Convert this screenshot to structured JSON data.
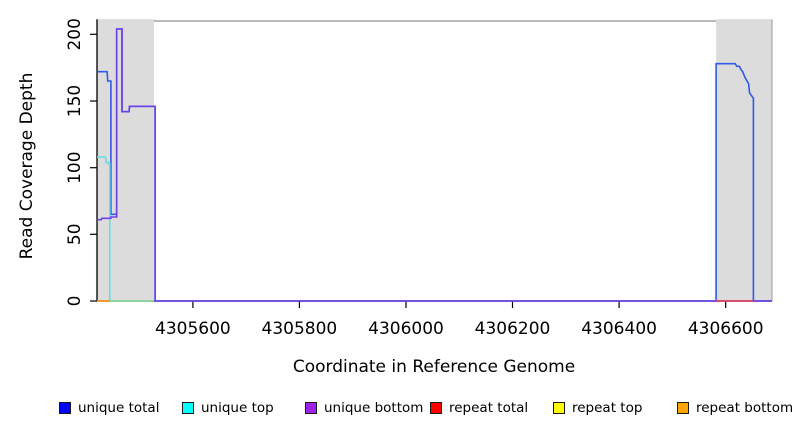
{
  "figure": {
    "y_axis_label": "Read Coverage Depth",
    "x_axis_label": "Coordinate in Reference Genome"
  },
  "legend": {
    "items": [
      {
        "label": "unique total",
        "color": "#0000ff"
      },
      {
        "label": "unique top",
        "color": "#00ffff"
      },
      {
        "label": "unique bottom",
        "color": "#a020f0"
      },
      {
        "label": "repeat total",
        "color": "#ff0000"
      },
      {
        "label": "repeat top",
        "color": "#ffff00"
      },
      {
        "label": "repeat bottom",
        "color": "#ffa500"
      }
    ]
  },
  "chart_data": {
    "type": "line",
    "title": "",
    "xlabel": "Coordinate in Reference Genome",
    "ylabel": "Read Coverage Depth",
    "xlim": [
      4305420,
      4306687
    ],
    "ylim": [
      0,
      210
    ],
    "x_ticks": [
      4305600,
      4305800,
      4306000,
      4306200,
      4306400,
      4306600
    ],
    "y_ticks": [
      0,
      50,
      100,
      150,
      200
    ],
    "grid": false,
    "legend_position": "bottom",
    "plot_background": "#ffffff",
    "band_color": "#dcdcdc",
    "highlight_bands": [
      {
        "x0": 4305420,
        "x1": 4305527
      },
      {
        "x0": 4306582,
        "x1": 4306687
      }
    ],
    "series": [
      {
        "name": "unique total",
        "legend_color": "#0000ff",
        "render_color": "#2f5ae8",
        "points": [
          [
            4305420,
            172
          ],
          [
            4305439,
            172
          ],
          [
            4305440,
            165
          ],
          [
            4305446,
            165
          ],
          [
            4305446,
            65
          ],
          [
            4305457,
            65
          ],
          [
            4305457,
            204
          ],
          [
            4305467,
            204
          ],
          [
            4305467,
            142
          ],
          [
            4305480,
            142
          ],
          [
            4305481,
            146
          ],
          [
            4305529,
            146
          ],
          [
            4305529,
            0
          ],
          [
            4306582,
            0
          ],
          [
            4306582,
            178
          ],
          [
            4306618,
            178
          ],
          [
            4306621,
            176
          ],
          [
            4306626,
            176
          ],
          [
            4306628,
            174
          ],
          [
            4306632,
            172
          ],
          [
            4306636,
            168
          ],
          [
            4306640,
            165
          ],
          [
            4306643,
            163
          ],
          [
            4306645,
            156
          ],
          [
            4306652,
            152
          ],
          [
            4306652,
            0
          ],
          [
            4306687,
            0
          ]
        ]
      },
      {
        "name": "unique top",
        "legend_color": "#00ffff",
        "render_color": "#63dfe8",
        "points": [
          [
            4305420,
            108
          ],
          [
            4305436,
            108
          ],
          [
            4305437,
            104
          ],
          [
            4305440,
            104
          ],
          [
            4305441,
            103
          ],
          [
            4305444,
            103
          ],
          [
            4305444,
            0
          ],
          [
            4305527,
            0
          ]
        ]
      },
      {
        "name": "unique bottom",
        "legend_color": "#a020f0",
        "render_color": "#7141e8",
        "points": [
          [
            4305420,
            61
          ],
          [
            4305428,
            61
          ],
          [
            4305429,
            62
          ],
          [
            4305446,
            62
          ],
          [
            4305446,
            63
          ],
          [
            4305457,
            63
          ],
          [
            4305457,
            204
          ],
          [
            4305467,
            204
          ],
          [
            4305467,
            142
          ],
          [
            4305480,
            142
          ],
          [
            4305481,
            146
          ],
          [
            4305529,
            146
          ],
          [
            4305529,
            0
          ],
          [
            4306582,
            0
          ],
          [
            4306652,
            0
          ],
          [
            4306687,
            0
          ]
        ]
      },
      {
        "name": "repeat total",
        "legend_color": "#ff0000",
        "render_color": "#ee4050",
        "points": [
          [
            4306582,
            0
          ],
          [
            4306652,
            0
          ]
        ]
      },
      {
        "name": "repeat top",
        "legend_color": "#ffff00",
        "render_color": "#90d893",
        "points": [
          [
            4305444,
            0
          ],
          [
            4305527,
            0
          ]
        ]
      },
      {
        "name": "repeat bottom",
        "legend_color": "#ffa500",
        "render_color": "#ff9018",
        "points": [
          [
            4305420,
            0
          ],
          [
            4305444,
            0
          ]
        ]
      }
    ]
  }
}
